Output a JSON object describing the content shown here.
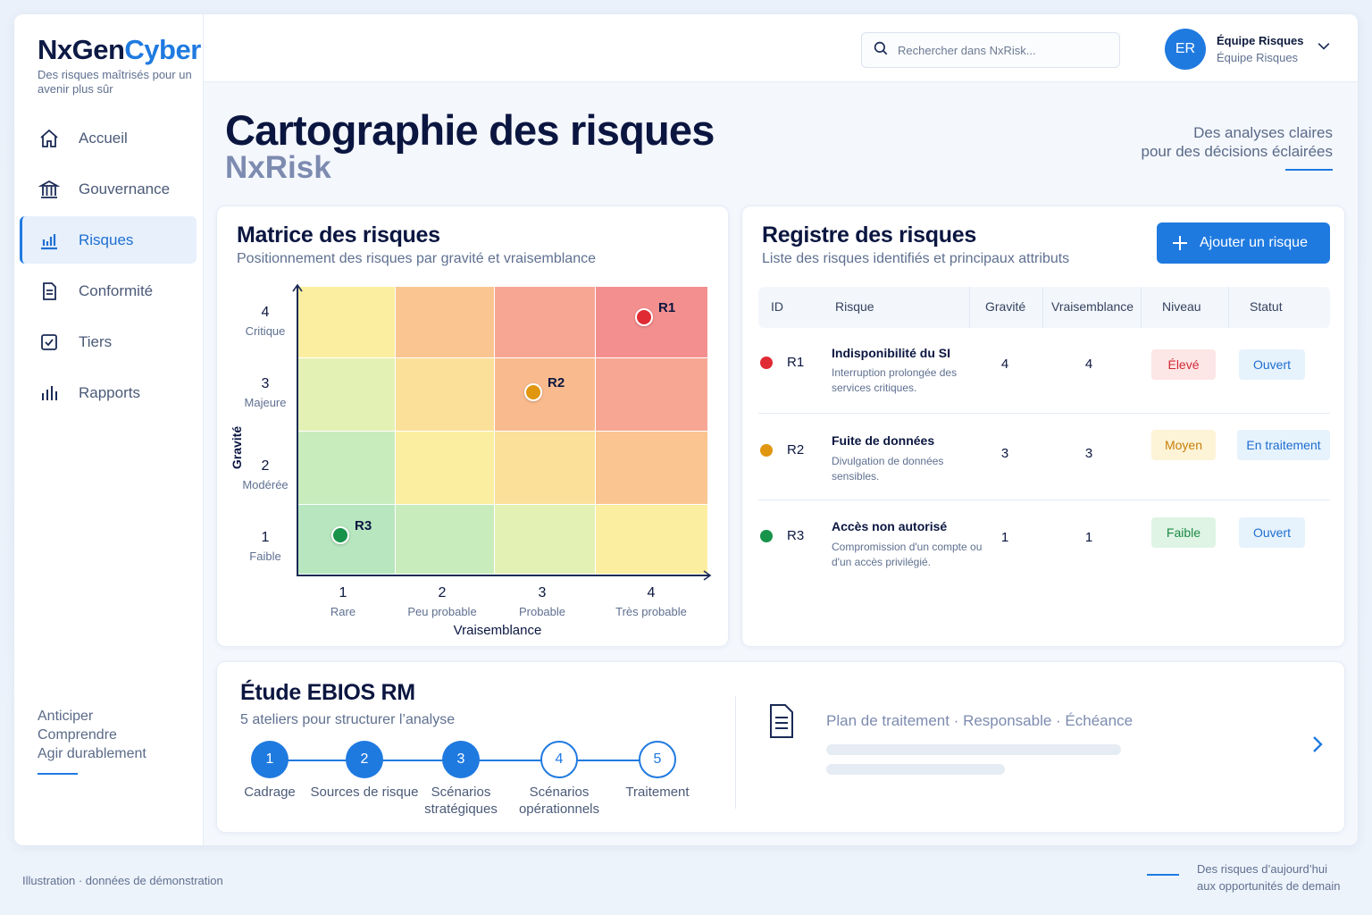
{
  "brand": {
    "part1": "NxGen",
    "part2": "Cyber",
    "tagline": "Des risques maîtrisés pour un avenir plus sûr"
  },
  "topbar": {
    "search_placeholder": "Rechercher dans NxRisk...",
    "avatar_initials": "ER",
    "user_name": "Équipe Risques",
    "user_role": "Équipe Risques"
  },
  "sidebar": {
    "items": [
      {
        "label": "Accueil",
        "icon": "home-icon",
        "active": false
      },
      {
        "label": "Gouvernance",
        "icon": "institution-icon",
        "active": false
      },
      {
        "label": "Risques",
        "icon": "bar-chart-icon",
        "active": true
      },
      {
        "label": "Conformité",
        "icon": "document-icon",
        "active": false
      },
      {
        "label": "Tiers",
        "icon": "checkbox-icon",
        "active": false
      },
      {
        "label": "Rapports",
        "icon": "bars-icon",
        "active": false
      }
    ],
    "motto": [
      "Anticiper",
      "Comprendre",
      "Agir durablement"
    ]
  },
  "page": {
    "title": "Cartographie des risques",
    "subtitle": "NxRisk",
    "claim_line1": "Des analyses claires",
    "claim_line2": "pour des décisions éclairées"
  },
  "matrix": {
    "title": "Matrice des risques",
    "subtitle": "Positionnement des risques par gravité et vraisemblance",
    "y_label": "Gravité",
    "x_label": "Vraisemblance",
    "y_ticks": [
      {
        "n": "4",
        "l": "Critique"
      },
      {
        "n": "3",
        "l": "Majeure"
      },
      {
        "n": "2",
        "l": "Modérée"
      },
      {
        "n": "1",
        "l": "Faible"
      }
    ],
    "x_ticks": [
      {
        "n": "1",
        "l": "Rare"
      },
      {
        "n": "2",
        "l": "Peu probable"
      },
      {
        "n": "3",
        "l": "Probable"
      },
      {
        "n": "4",
        "l": "Très probable"
      }
    ],
    "points": [
      {
        "id": "R1",
        "gravite": 4,
        "vraisemblance": 4
      },
      {
        "id": "R2",
        "gravite": 3,
        "vraisemblance": 3
      },
      {
        "id": "R3",
        "gravite": 1,
        "vraisemblance": 1
      }
    ]
  },
  "register": {
    "title": "Registre des risques",
    "subtitle": "Liste des risques identifiés et principaux attributs",
    "add_label": "Ajouter un risque",
    "columns": [
      "ID",
      "Risque",
      "Gravité",
      "Vraisemblance",
      "Niveau",
      "Statut"
    ],
    "rows": [
      {
        "id": "R1",
        "title": "Indisponibilité du SI",
        "desc": "Interruption prolongée des services critiques.",
        "gravite": "4",
        "vraisemblance": "4",
        "niveau": "Élevé",
        "statut": "Ouvert",
        "color": "#e02b35",
        "niveau_bg": "#fde6e6",
        "niveau_fg": "#d12b35"
      },
      {
        "id": "R2",
        "title": "Fuite de données",
        "desc": "Divulgation de données sensibles.",
        "gravite": "3",
        "vraisemblance": "3",
        "niveau": "Moyen",
        "statut": "En traitement",
        "color": "#e0960f",
        "niveau_bg": "#fdf3d6",
        "niveau_fg": "#c77f0a"
      },
      {
        "id": "R3",
        "title": "Accès non autorisé",
        "desc": "Compromission d'un compte ou d'un accès privilégié.",
        "gravite": "1",
        "vraisemblance": "1",
        "niveau": "Faible",
        "statut": "Ouvert",
        "color": "#17934a",
        "niveau_bg": "#dff4e4",
        "niveau_fg": "#1c8a45"
      }
    ]
  },
  "ebios": {
    "title": "Étude EBIOS RM",
    "subtitle": "5 ateliers pour structurer l’analyse",
    "steps": [
      {
        "n": "1",
        "label": "Cadrage",
        "filled": true
      },
      {
        "n": "2",
        "label": "Sources de risque",
        "filled": true
      },
      {
        "n": "3",
        "label": "Scénarios stratégiques",
        "filled": true
      },
      {
        "n": "4",
        "label": "Scénarios opérationnels",
        "filled": false
      },
      {
        "n": "5",
        "label": "Traitement",
        "filled": false
      }
    ],
    "plan_text": "Plan de traitement · Responsable · Échéance"
  },
  "footer": {
    "left": "Illustration · données de démonstration",
    "right_line1": "Des risques d’aujourd’hui",
    "right_line2": "aux opportunités de demain"
  }
}
